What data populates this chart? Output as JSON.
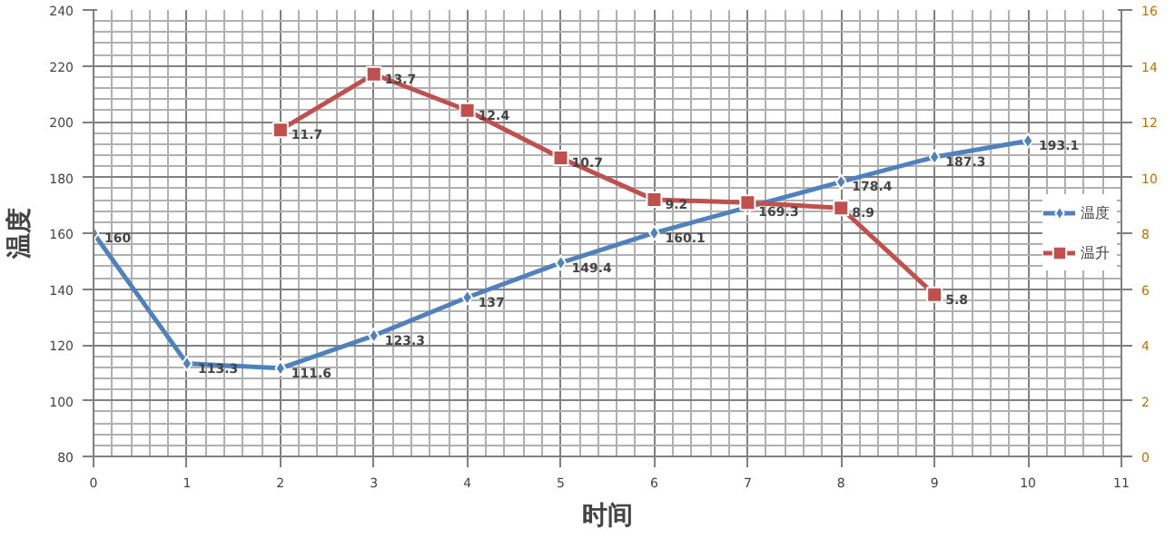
{
  "chart_data": {
    "type": "line",
    "xlabel": "时间",
    "ylabel": "温度",
    "x": [
      0,
      1,
      2,
      3,
      4,
      5,
      6,
      7,
      8,
      9,
      10
    ],
    "series": [
      {
        "name": "温度",
        "color": "#4f81bd",
        "marker": "diamond",
        "values": [
          160,
          113.3,
          111.6,
          123.3,
          137,
          149.4,
          160.1,
          169.3,
          178.4,
          187.3,
          193.1
        ],
        "value_labels": [
          "160",
          "113.3",
          "111.6",
          "123.3",
          "137",
          "149.4",
          "160.1",
          "169.3",
          "178.4",
          "187.3",
          "193.1"
        ]
      },
      {
        "name": "温升",
        "color": "#c0504d",
        "marker": "square",
        "axis": "y2",
        "x": [
          2,
          3,
          4,
          5,
          6,
          7,
          8,
          9
        ],
        "values": [
          11.7,
          13.7,
          12.4,
          10.7,
          9.2,
          9.1,
          8.9,
          5.8
        ],
        "value_labels": [
          "11.7",
          "13.7",
          "12.4",
          "10.7",
          "9.2",
          null,
          "8.9",
          "5.8"
        ]
      }
    ],
    "xlim": [
      0,
      11
    ],
    "xticks": [
      0,
      1,
      2,
      3,
      4,
      5,
      6,
      7,
      8,
      9,
      10,
      11
    ],
    "ylim": [
      80,
      240
    ],
    "yticks": [
      80,
      100,
      120,
      140,
      160,
      180,
      200,
      220,
      240
    ],
    "y2lim": [
      0,
      16
    ],
    "y2ticks": [
      0,
      2,
      4,
      6,
      8,
      10,
      12,
      14,
      16
    ],
    "grid": true,
    "legend": "right"
  }
}
